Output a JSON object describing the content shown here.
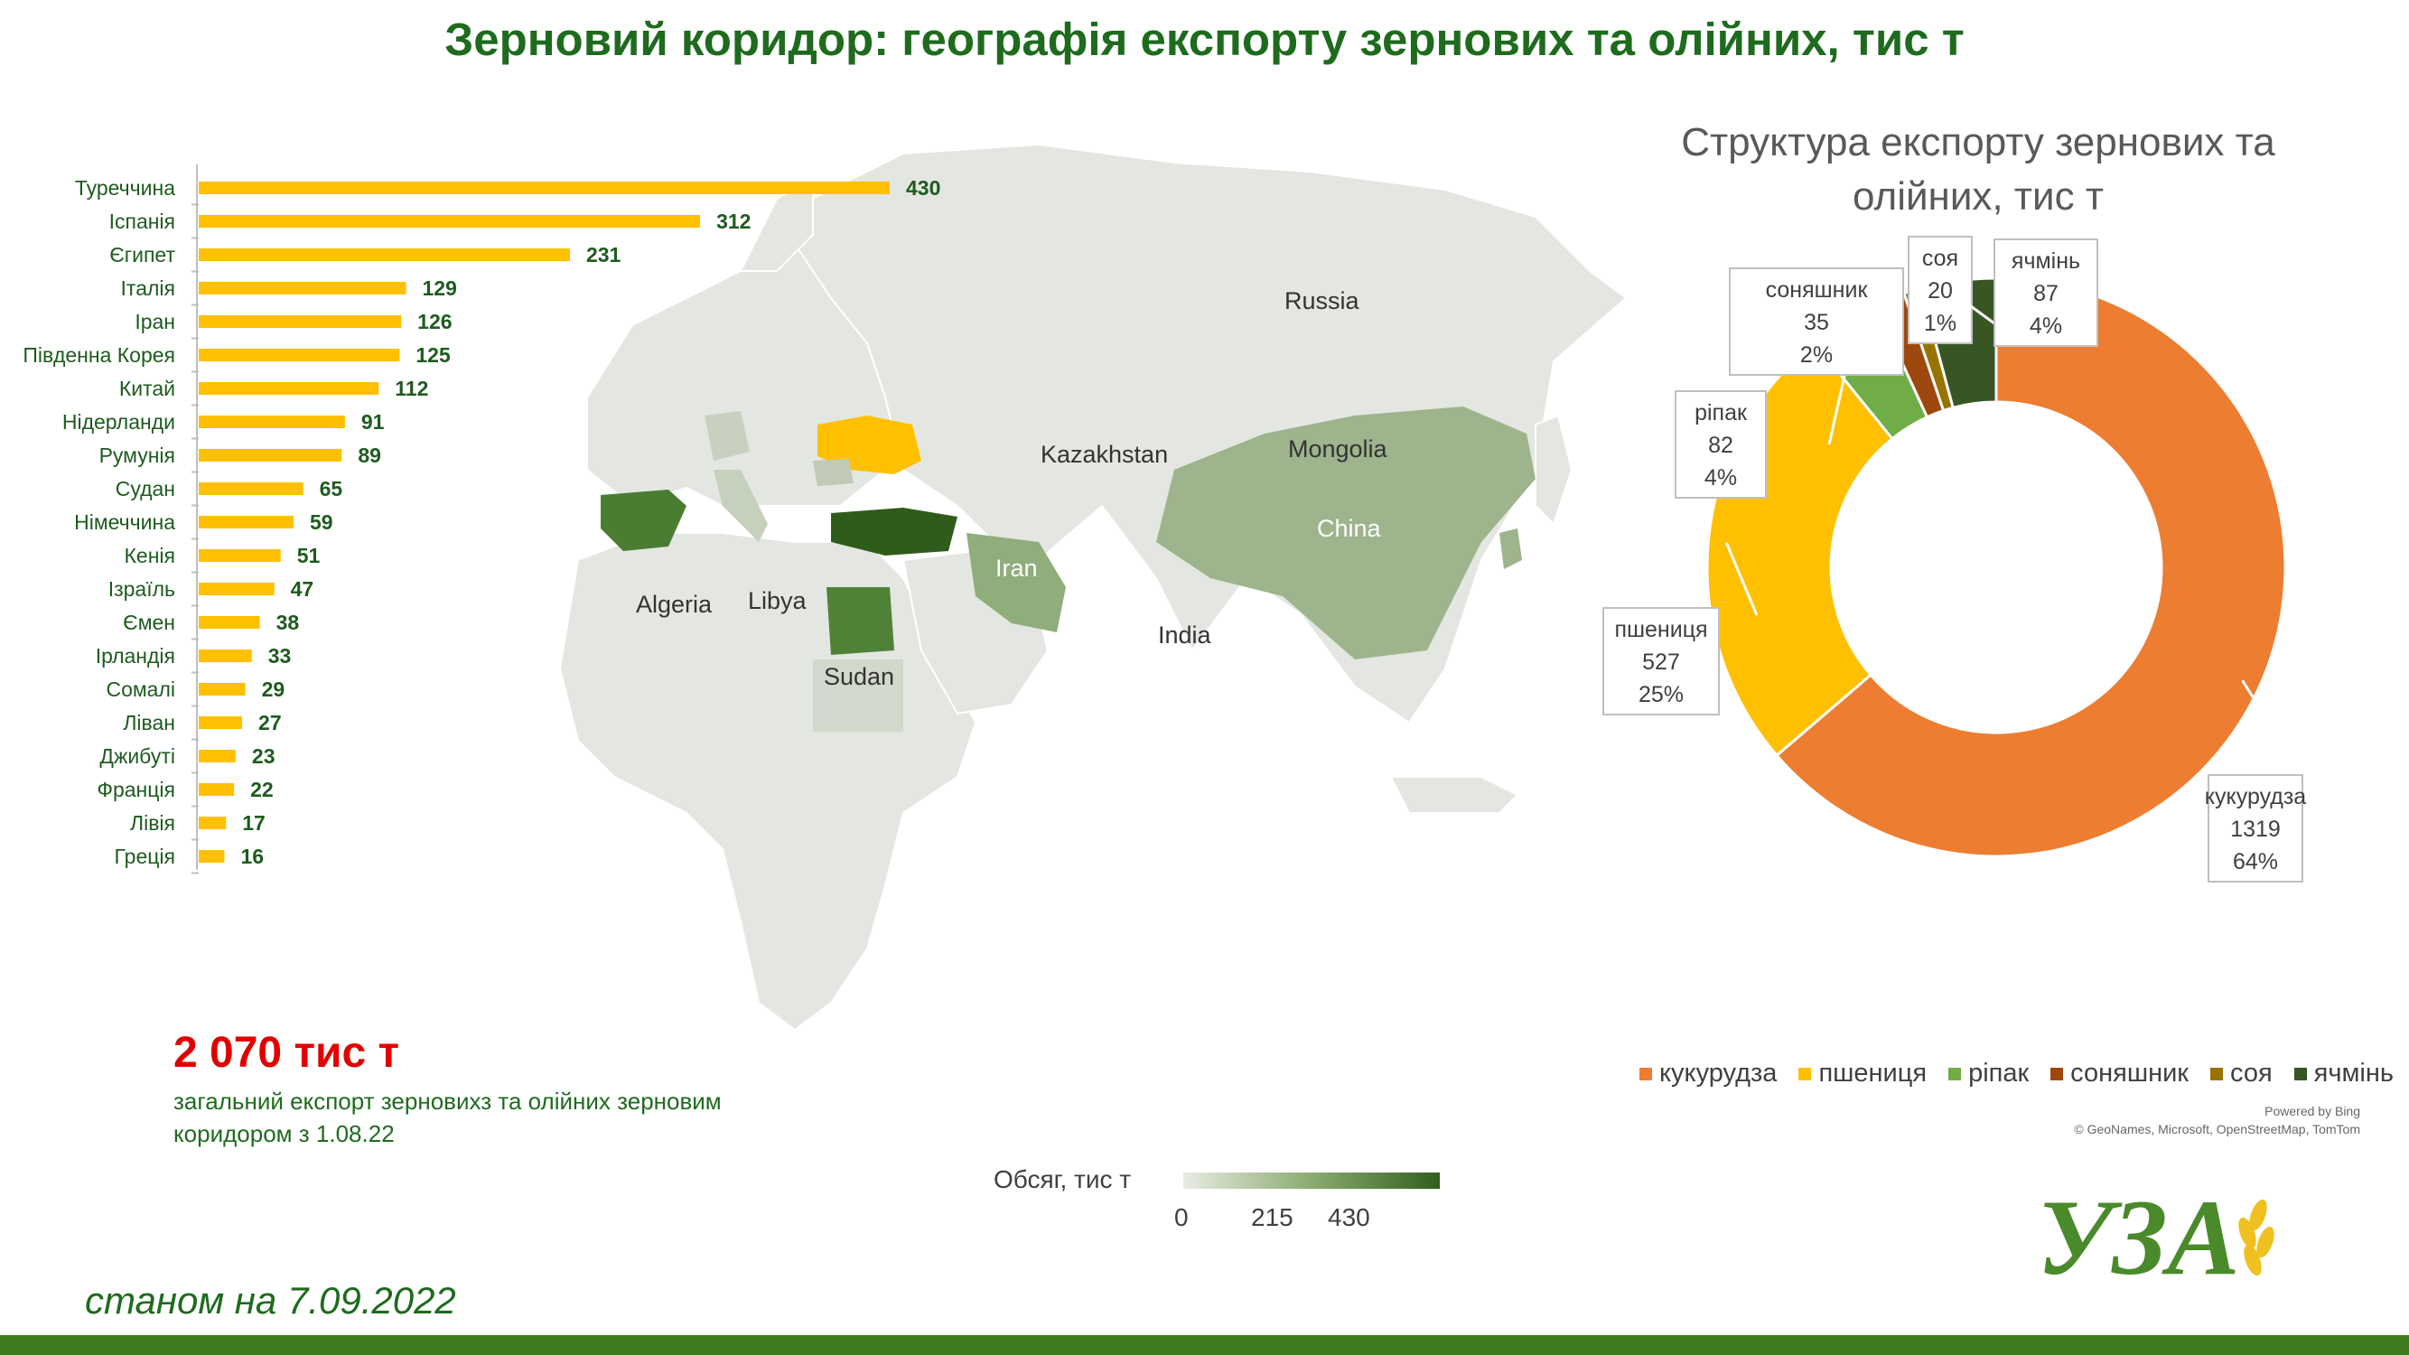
{
  "title": "Зерновий коридор: географія експорту зернових та олійних, тис т",
  "chart_data": [
    {
      "type": "bar",
      "orientation": "horizontal",
      "categories": [
        "Туреччина",
        "Іспанія",
        "Єгипет",
        "Італія",
        "Іран",
        "Південна Корея",
        "Китай",
        "Нідерланди",
        "Румунія",
        "Судан",
        "Німеччина",
        "Кенія",
        "Ізраїль",
        "Ємен",
        "Ірландія",
        "Сомалі",
        "Ліван",
        "Джибуті",
        "Франція",
        "Лівія",
        "Греція"
      ],
      "values": [
        430,
        312,
        231,
        129,
        126,
        125,
        112,
        91,
        89,
        65,
        59,
        51,
        47,
        38,
        33,
        29,
        27,
        23,
        22,
        17,
        16
      ],
      "color": "#ffc000",
      "grid": false
    },
    {
      "type": "pie",
      "subtype": "donut",
      "title": "Структура експорту зернових та олійних, тис т",
      "slices": [
        {
          "label": "кукурудза",
          "value": 1319,
          "percent": "64%",
          "color": "#ed7d31"
        },
        {
          "label": "пшениця",
          "value": 527,
          "percent": "25%",
          "color": "#ffc000"
        },
        {
          "label": "ріпак",
          "value": 82,
          "percent": "4%",
          "color": "#70ad47"
        },
        {
          "label": "соняшник",
          "value": 35,
          "percent": "2%",
          "color": "#9e480e"
        },
        {
          "label": "соя",
          "value": 20,
          "percent": "1%",
          "color": "#997300"
        },
        {
          "label": "ячмінь",
          "value": 87,
          "percent": "4%",
          "color": "#375623"
        }
      ],
      "legend_position": "bottom"
    }
  ],
  "map": {
    "labels": [
      "Russia",
      "Kazakhstan",
      "Mongolia",
      "China",
      "Iran",
      "India",
      "Algeria",
      "Libya",
      "Sudan"
    ],
    "scale": {
      "title": "Обсяг, тис т",
      "ticks": [
        "0",
        "215",
        "430"
      ],
      "colors": [
        "#e8ebe3",
        "#8aab6f",
        "#315f1d"
      ]
    },
    "credit_line1": "Powered by Bing",
    "credit_line2": "© GeoNames, Microsoft, OpenStreetMap, TomTom",
    "highlight_color": "#ffc000"
  },
  "summary": {
    "total": "2 070 тис т",
    "caption": "загальний експорт зерновихз та олійних зерновим коридором  з 1.08.22"
  },
  "as_of": "станом на 7.09.2022",
  "logo_text": "УЗА"
}
